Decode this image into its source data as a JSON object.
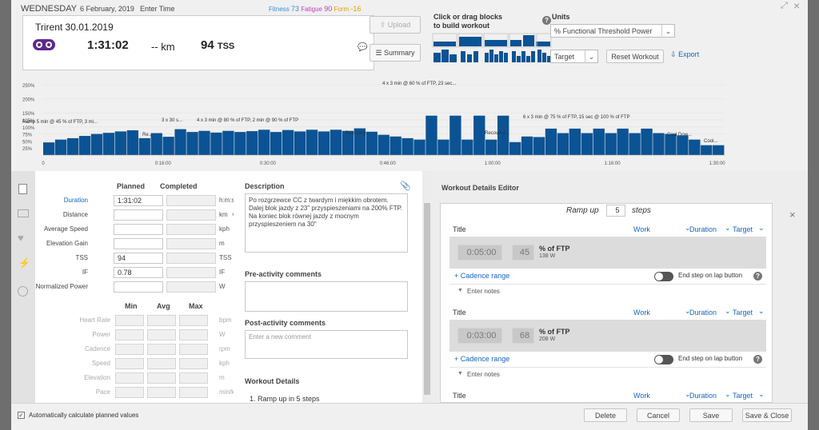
{
  "header": {
    "day": "WEDNESDAY",
    "date": "6 February, 2019",
    "enter_time": "Enter Time",
    "fitness_label": "Fitness",
    "fitness": "73",
    "fatigue_label": "Fatigue",
    "fatigue": "90",
    "form_label": "Form",
    "form": "-16"
  },
  "summary": {
    "title": "Trirent 30.01.2019",
    "duration": "1:31:02",
    "distance": "-- km",
    "tss": "94",
    "tss_unit": "TSS"
  },
  "buttons": {
    "upload": "Upload",
    "summary": "Summary",
    "target": "Target",
    "reset": "Reset Workout",
    "export": "Export",
    "delete": "Delete",
    "cancel": "Cancel",
    "save": "Save",
    "save_close": "Save & Close"
  },
  "blocks": {
    "title": "Click or drag blocks to build workout"
  },
  "units": {
    "label": "Units",
    "value": "% Functional Threshold Power"
  },
  "chart_data": {
    "type": "bar",
    "ylabels": [
      "250%",
      "200%",
      "150%",
      "125%",
      "100%",
      "75%",
      "50%",
      "25%"
    ],
    "xlabels": [
      "0",
      "0:16:00",
      "0:30:00",
      "0:46:00",
      "1:00:00",
      "1:16:00",
      "1:30:00"
    ],
    "annotations": [
      "Ramp 5 min @ 45 % of FTP, 3 mi...",
      "Re...",
      "3 x 30 s...",
      "4 x 3 min @ 80 % of FTP, 2 min @ 90 % of FTP",
      "Recovery...",
      "4 x 3 min @ 60 % of FTP, 23 sec...",
      "Recovery...",
      "6 x 3 min @ 75 % of FTP, 15 sec @ 100 % of FTP",
      "Cool Dow...",
      "Cool..."
    ],
    "values": [
      45,
      55,
      60,
      68,
      75,
      79,
      84,
      88,
      60,
      78,
      65,
      92,
      82,
      86,
      80,
      86,
      82,
      85,
      90,
      82,
      89,
      84,
      90,
      84,
      90,
      86,
      95,
      83,
      72,
      66,
      60,
      55,
      140,
      55,
      140,
      55,
      140,
      55,
      140,
      46,
      66,
      64,
      94,
      78,
      94,
      78,
      94,
      78,
      94,
      78,
      94,
      78,
      75,
      70,
      55,
      35,
      35
    ]
  },
  "planned": {
    "planned_hdr": "Planned",
    "completed_hdr": "Completed",
    "rows": [
      {
        "label": "Duration",
        "value": "1:31:02",
        "unit": "h:m:s"
      },
      {
        "label": "Distance",
        "value": "",
        "unit": "km"
      },
      {
        "label": "Average Speed",
        "value": "",
        "unit": "kph"
      },
      {
        "label": "Elevation Gain",
        "value": "",
        "unit": "m"
      },
      {
        "label": "TSS",
        "value": "94",
        "unit": "TSS"
      },
      {
        "label": "IF",
        "value": "0.78",
        "unit": "IF"
      },
      {
        "label": "Normalized Power",
        "value": "",
        "unit": "W"
      }
    ]
  },
  "minmax": {
    "min": "Min",
    "avg": "Avg",
    "max": "Max",
    "rows": [
      {
        "label": "Heart Rate",
        "unit": "bpm"
      },
      {
        "label": "Power",
        "unit": "W"
      },
      {
        "label": "Cadence",
        "unit": "rpm"
      },
      {
        "label": "Speed",
        "unit": "kph"
      },
      {
        "label": "Elevation",
        "unit": "m"
      },
      {
        "label": "Pace",
        "unit": "min/km"
      }
    ]
  },
  "description": {
    "label": "Description",
    "text": "Po rozgrzewce CC z twardym i miękkim obrotem.\nDalej blok jazdy z 23\" przyspieszeniami na 200% FTP.\nNa koniec blok równej jazdy z mocnym przyspieszeniem na 30\""
  },
  "pre": {
    "label": "Pre-activity comments"
  },
  "post": {
    "label": "Post-activity comments",
    "placeholder": "Enter a new comment"
  },
  "details": {
    "label": "Workout Details",
    "item1": "1. Ramp up in 5 steps"
  },
  "editor": {
    "title": "Workout Details Editor",
    "ramp": "Ramp up",
    "steps_count": "5",
    "steps_word": "steps",
    "title_col": "Title",
    "work": "Work",
    "duration": "Duration",
    "target": "Target",
    "cadence": "+ Cadence range",
    "end_step": "End step on lap button",
    "notes": "Enter notes",
    "pct_ftp": "% of FTP",
    "step1": {
      "time": "0:05:00",
      "pct": "45",
      "watts": "138 W"
    },
    "step2": {
      "time": "0:03:00",
      "pct": "68",
      "watts": "208 W"
    }
  },
  "footer": {
    "auto_calc": "Automatically calculate planned values"
  }
}
